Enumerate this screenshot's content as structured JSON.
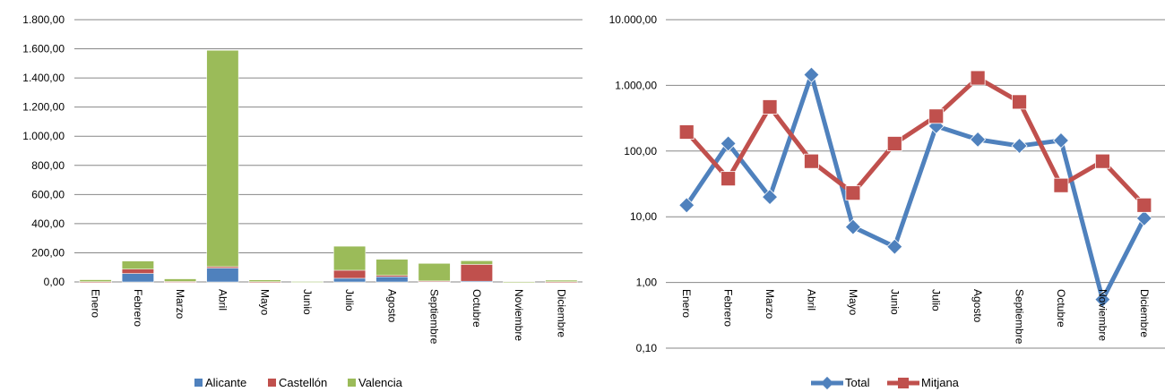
{
  "colors": {
    "alicante": "#4F81BD",
    "castellon": "#C0504D",
    "valencia": "#9BBB59",
    "total": "#4F81BD",
    "mitjana": "#C0504D",
    "grid": "#878787"
  },
  "chart_data": [
    {
      "type": "bar",
      "stacked": true,
      "categories": [
        "Enero",
        "Febrero",
        "Marzo",
        "Abril",
        "Mayo",
        "Junio",
        "Julio",
        "Agosto",
        "Septiembre",
        "Octubre",
        "Noviembre",
        "Diciembre"
      ],
      "series": [
        {
          "name": "Alicante",
          "values": [
            1,
            58,
            2,
            95,
            1,
            0,
            25,
            35,
            5,
            5,
            0,
            1
          ]
        },
        {
          "name": "Castellón",
          "values": [
            1,
            30,
            1,
            10,
            1,
            0,
            55,
            10,
            2,
            115,
            0,
            1
          ]
        },
        {
          "name": "Valencia",
          "values": [
            13,
            55,
            18,
            1485,
            12,
            3,
            165,
            110,
            120,
            25,
            1,
            10
          ]
        }
      ],
      "yticks": [
        "0,00",
        "200,00",
        "400,00",
        "600,00",
        "800,00",
        "1.000,00",
        "1.200,00",
        "1.400,00",
        "1.600,00",
        "1.800,00"
      ],
      "ylim": [
        0,
        1800
      ],
      "legend_position": "bottom",
      "grid": true
    },
    {
      "type": "line",
      "log_scale": true,
      "categories": [
        "Enero",
        "Febrero",
        "Marzo",
        "Abril",
        "Mayo",
        "Junio",
        "Julio",
        "Agosto",
        "Septiembre",
        "Octubre",
        "Noviembre",
        "Diciembre"
      ],
      "series": [
        {
          "name": "Total",
          "values": [
            15,
            130,
            20,
            1450,
            7,
            3.5,
            240,
            150,
            120,
            145,
            0.55,
            9.5
          ]
        },
        {
          "name": "Mitjana",
          "values": [
            195,
            38,
            470,
            70,
            23,
            130,
            340,
            1300,
            560,
            30,
            70,
            15
          ]
        }
      ],
      "yticks": [
        "0,10",
        "1,00",
        "10,00",
        "100,00",
        "1.000,00",
        "10.000,00"
      ],
      "ylim": [
        0.1,
        10000
      ],
      "legend_position": "bottom",
      "grid": true
    }
  ]
}
